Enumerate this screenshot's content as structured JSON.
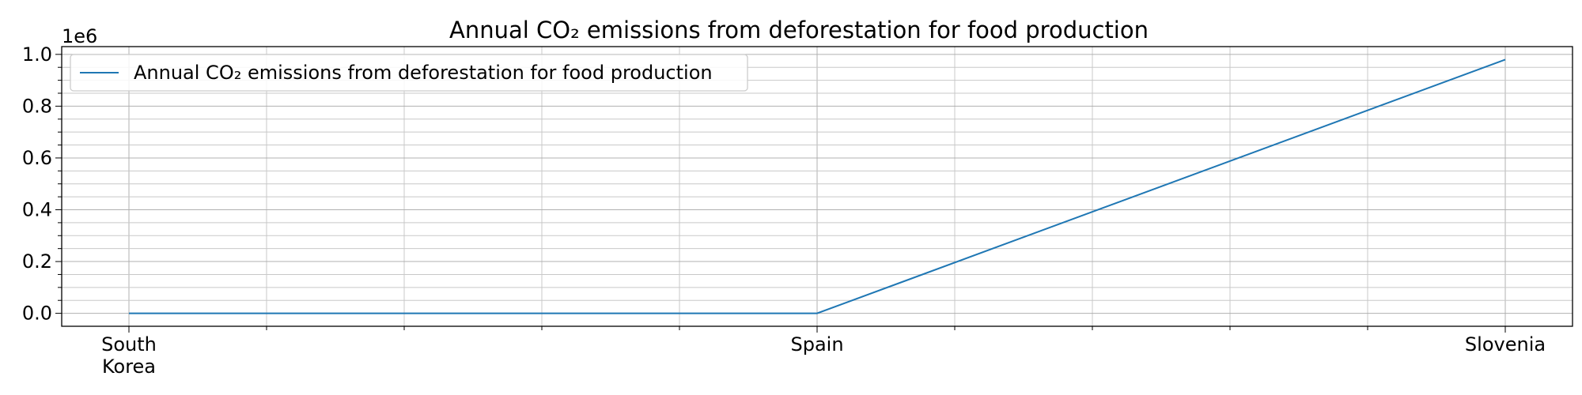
{
  "chart_data": {
    "type": "line",
    "title": "Annual CO₂ emissions from deforestation for food production",
    "xlabel": "",
    "ylabel": "",
    "categories": [
      "South Korea",
      "Spain",
      "Slovenia"
    ],
    "category_lines": [
      [
        "South",
        "Korea"
      ],
      [
        "Spain"
      ],
      [
        "Slovenia"
      ]
    ],
    "series": [
      {
        "name": "Annual CO₂ emissions from deforestation for food production",
        "values": [
          0,
          0,
          980000
        ],
        "color": "#1f77b4"
      }
    ],
    "ylim": [
      -50000,
      1030000
    ],
    "yticks": [
      0,
      200000,
      400000,
      600000,
      800000,
      1000000
    ],
    "ytick_labels": [
      "0.0",
      "0.2",
      "0.4",
      "0.6",
      "0.8",
      "1.0"
    ],
    "y_offset_label": "1e6",
    "grid": "major-and-minor",
    "legend_position": "upper-left"
  }
}
